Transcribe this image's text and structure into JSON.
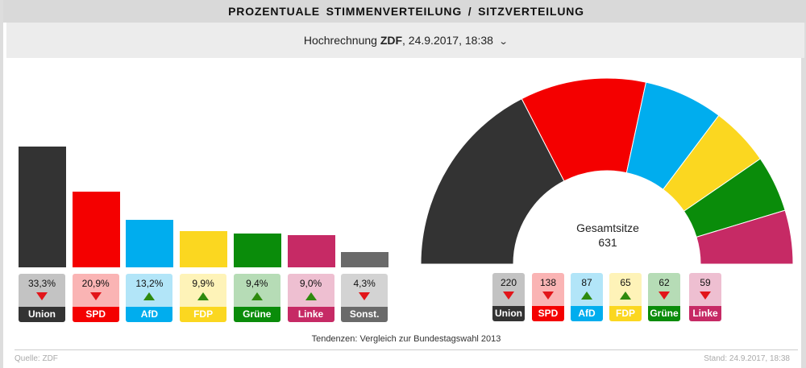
{
  "header": {
    "title": "PROZENTUALE  STIMMENVERTEILUNG  /  SITZVERTEILUNG"
  },
  "subheader": {
    "prefix": "Hochrechnung ",
    "source": "ZDF",
    "suffix": ", 24.9.2017, 18:38",
    "dropdown_icon": "chevron-down-icon"
  },
  "chart_data": [
    {
      "type": "bar",
      "categories": [
        "Union",
        "SPD",
        "AfD",
        "FDP",
        "Grüne",
        "Linke",
        "Sonst."
      ],
      "values": [
        33.3,
        20.9,
        13.2,
        9.9,
        9.4,
        9.0,
        4.3
      ],
      "labels": [
        "33,3%",
        "20,9%",
        "13,2%",
        "9,9%",
        "9,4%",
        "9,0%",
        "4,3%"
      ],
      "trend": [
        "down",
        "down",
        "up",
        "up",
        "up",
        "up",
        "down"
      ],
      "colors": [
        "#333333",
        "#f40000",
        "#00adee",
        "#fbd720",
        "#0a8c0a",
        "#c62a65",
        "#6a6a6a"
      ],
      "light_colors": [
        "#c3c3c3",
        "#fab4b4",
        "#b2e5f8",
        "#fef3b8",
        "#b6dcb6",
        "#eebfd1",
        "#d3d3d3"
      ]
    },
    {
      "type": "pie",
      "subtype": "hemicycle",
      "categories": [
        "Union",
        "SPD",
        "AfD",
        "FDP",
        "Grüne",
        "Linke"
      ],
      "values": [
        220,
        138,
        87,
        65,
        62,
        59
      ],
      "trend": [
        "down",
        "down",
        "up",
        "up",
        "down",
        "down"
      ],
      "colors": [
        "#333333",
        "#f40000",
        "#00adee",
        "#fbd720",
        "#0a8c0a",
        "#c62a65"
      ],
      "light_colors": [
        "#c3c3c3",
        "#fab4b4",
        "#b2e5f8",
        "#fef3b8",
        "#b6dcb6",
        "#eebfd1"
      ],
      "center_label": "Gesamtsitze",
      "total": "631"
    }
  ],
  "note": "Tendenzen: Vergleich zur Bundestagswahl 2013",
  "footer": {
    "source": "Quelle: ZDF",
    "stand": "Stand: 24.9.2017, 18:38"
  }
}
